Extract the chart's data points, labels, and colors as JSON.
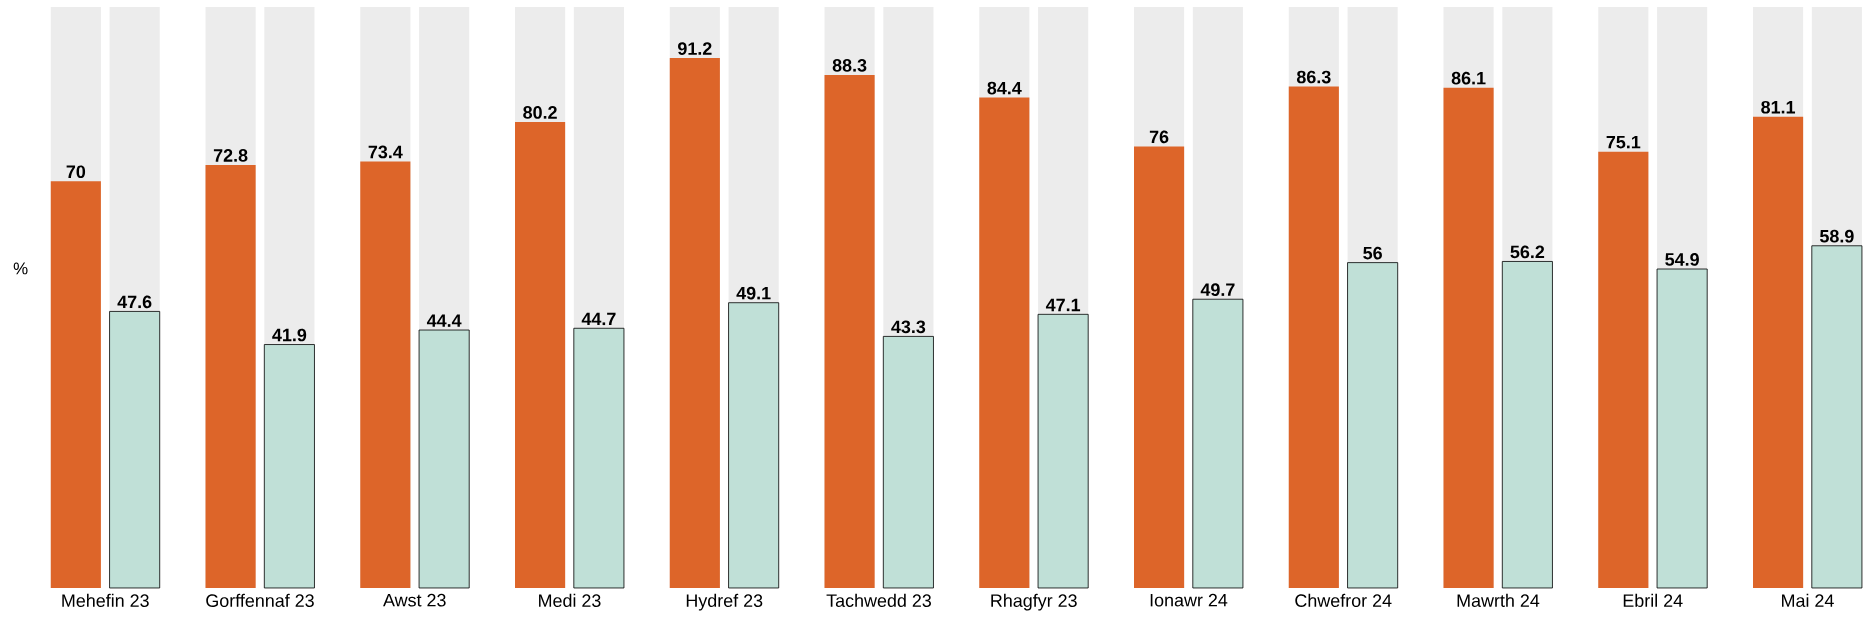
{
  "chart_data": {
    "type": "bar",
    "ylabel": "%",
    "categories": [
      "Mehefin 23",
      "Gorffennaf 23",
      "Awst 23",
      "Medi 23",
      "Hydref 23",
      "Tachwedd 23",
      "Rhagfyr 23",
      "Ionawr 24",
      "Chwefror 24",
      "Mawrth 24",
      "Ebril 24",
      "Mai 24"
    ],
    "series": [
      {
        "color": "#dd6529",
        "values": [
          70,
          72.8,
          73.4,
          80.2,
          91.2,
          88.3,
          84.4,
          76,
          86.3,
          86.1,
          75.1,
          81.1
        ]
      },
      {
        "color": "#c0e0d7",
        "values": [
          47.6,
          41.9,
          44.4,
          44.7,
          49.1,
          43.3,
          47.1,
          49.7,
          56,
          56.2,
          54.9,
          58.9
        ]
      }
    ],
    "ylim": [
      0,
      100
    ],
    "data_labels": true
  }
}
